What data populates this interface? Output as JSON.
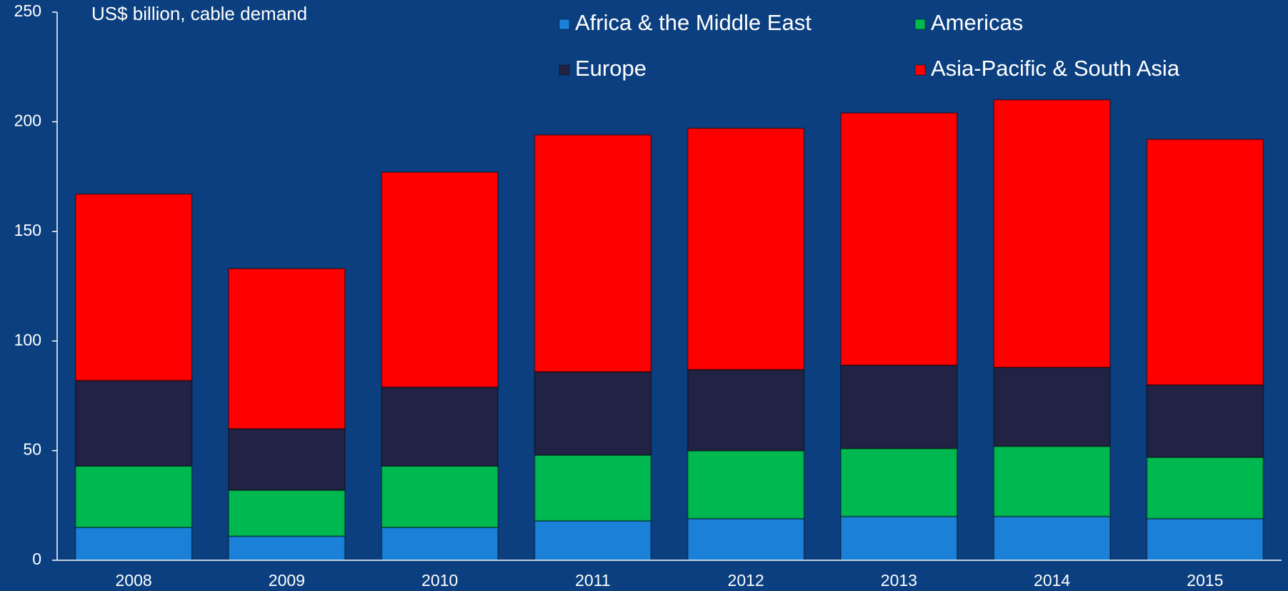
{
  "chart_data": {
    "type": "stacked_bar",
    "subtitle": "US$ billion, cable demand",
    "categories": [
      "2008",
      "2009",
      "2010",
      "2011",
      "2012",
      "2013",
      "2014",
      "2015"
    ],
    "series": [
      {
        "name": "Africa & the Middle East",
        "color": "#1a80d8",
        "values": [
          15,
          11,
          15,
          18,
          19,
          20,
          20,
          19
        ]
      },
      {
        "name": "Americas",
        "color": "#00b850",
        "values": [
          28,
          21,
          28,
          30,
          31,
          31,
          32,
          28
        ]
      },
      {
        "name": "Europe",
        "color": "#222244",
        "values": [
          39,
          28,
          36,
          38,
          37,
          38,
          36,
          33
        ]
      },
      {
        "name": "Asia-Pacific & South Asia",
        "color": "#ff0000",
        "values": [
          85,
          73,
          98,
          108,
          110,
          115,
          122,
          112
        ]
      }
    ],
    "ylim": [
      0,
      250
    ],
    "yticks": [
      0,
      50,
      100,
      150,
      200,
      250
    ],
    "grid": false
  }
}
